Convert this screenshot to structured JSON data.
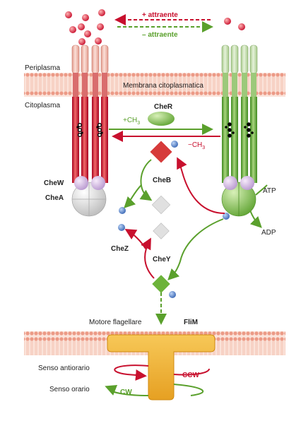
{
  "labels": {
    "attractant_plus": "+ attraente",
    "attractant_minus": "– attraente",
    "periplasm": "Periplasma",
    "membrane": "Membrana citoplasmatica",
    "cytoplasm": "Citoplasma",
    "cher": "CheR",
    "plus_ch3": "+CH",
    "minus_ch3": "−CH",
    "subscript_3": "3",
    "chew": "CheW",
    "chea": "CheA",
    "atp": "ATP",
    "adp": "ADP",
    "cheb": "CheB",
    "chez": "CheZ",
    "chey": "CheY",
    "motor": "Motore flagellare",
    "flim": "FliM",
    "counterclockwise": "Senso antiorario",
    "clockwise": "Senso orario",
    "ccw": "CCW",
    "cw": "CW"
  },
  "colors": {
    "red": "#c8102e",
    "green": "#5aa02c",
    "membrane": "#f2b2a0",
    "motor": "#f0b43a",
    "phosphate": "#4a78c0"
  }
}
